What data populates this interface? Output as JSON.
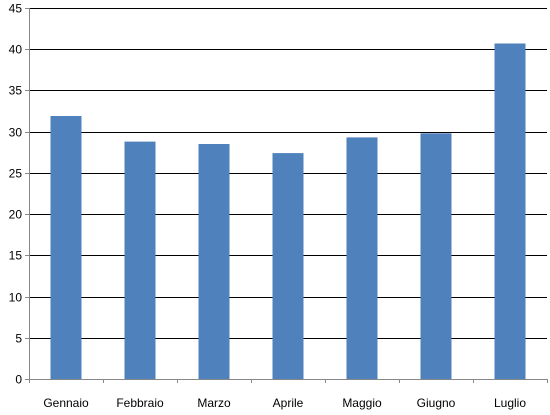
{
  "chart_data": {
    "type": "bar",
    "categories": [
      "Gennaio",
      "Febbraio",
      "Marzo",
      "Aprile",
      "Maggio",
      "Giugno",
      "Luglio"
    ],
    "values": [
      31.9,
      28.8,
      28.5,
      27.4,
      29.3,
      29.8,
      40.7
    ],
    "ylim": [
      0,
      45
    ],
    "y_ticks": [
      0,
      5,
      10,
      15,
      20,
      25,
      30,
      35,
      40,
      45
    ],
    "grid": true,
    "bar_color": "#4F81BD"
  }
}
